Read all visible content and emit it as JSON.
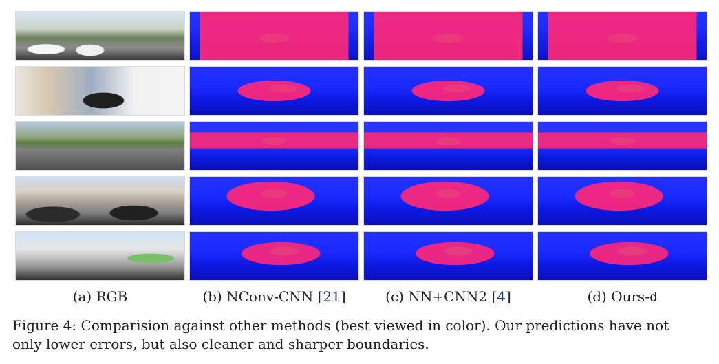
{
  "figure": {
    "grid": {
      "rows": 5,
      "columns": 4,
      "row_names": [
        "r1",
        "r2",
        "r3",
        "r4",
        "r5"
      ],
      "column_names": [
        "rgb",
        "nconv_cnn",
        "nn_cnn2",
        "ours_d"
      ]
    },
    "column_captions": [
      {
        "prefix": "(a) ",
        "label": "RGB",
        "ref": "",
        "suffix": ""
      },
      {
        "prefix": "(b) ",
        "label": "NConv-CNN ",
        "ref": "21",
        "suffix": "]"
      },
      {
        "prefix": "(c) ",
        "label": "NN+CNN2 ",
        "ref": "4",
        "suffix": "]"
      },
      {
        "prefix": "(d) ",
        "label": "Ours-",
        "mono": "d",
        "suffix": ""
      }
    ],
    "figure_caption": "Figure 4: Comparision against other methods (best viewed in color). Our predictions have not only lower errors, but also cleaner and sharper boundaries."
  }
}
